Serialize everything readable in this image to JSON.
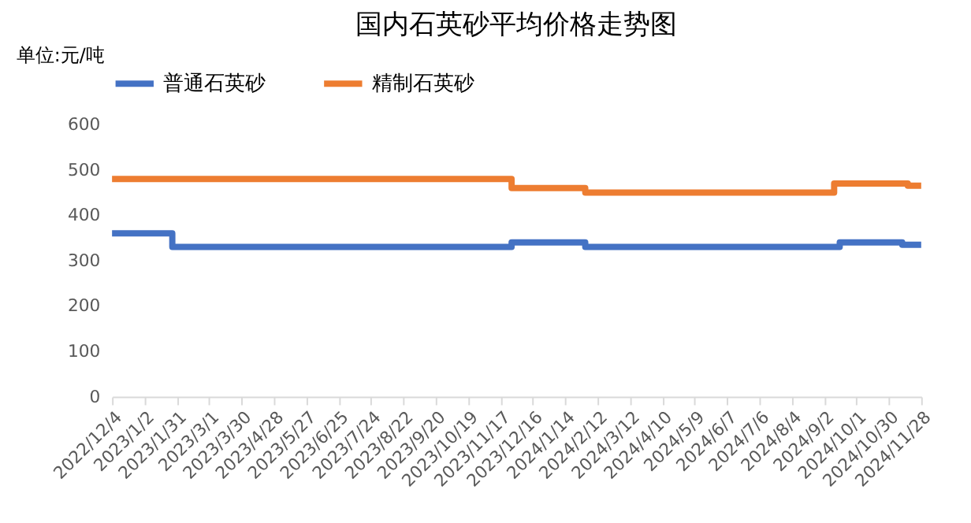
{
  "chart_data": {
    "type": "step",
    "title": "国内石英砂平均价格走势图",
    "ylabel": "单位:元/吨",
    "series": [
      {
        "name": "普通石英砂",
        "color": "#4472c4",
        "x": [
          "2022-12-04",
          "2023-01-27",
          "2023-11-27",
          "2024-02-01",
          "2024-09-16",
          "2024-11-11",
          "2024-11-28"
        ],
        "values": [
          360,
          330,
          340,
          330,
          340,
          335,
          335
        ]
      },
      {
        "name": "精制石英砂",
        "color": "#ed7d31",
        "x": [
          "2022-12-04",
          "2023-11-27",
          "2024-02-01",
          "2024-09-11",
          "2024-11-16",
          "2024-11-28"
        ],
        "values": [
          480,
          460,
          450,
          470,
          465,
          465
        ]
      }
    ],
    "xlim": [
      "2022-12-04",
      "2024-11-28"
    ],
    "xticks": [
      {
        "value": "2022-12-04",
        "label": "2022/12/4"
      },
      {
        "value": "2023-01-02",
        "label": "2023/1/2"
      },
      {
        "value": "2023-01-31",
        "label": "2023/1/31"
      },
      {
        "value": "2023-03-01",
        "label": "2023/3/1"
      },
      {
        "value": "2023-03-30",
        "label": "2023/3/30"
      },
      {
        "value": "2023-04-28",
        "label": "2023/4/28"
      },
      {
        "value": "2023-05-27",
        "label": "2023/5/27"
      },
      {
        "value": "2023-06-25",
        "label": "2023/6/25"
      },
      {
        "value": "2023-07-24",
        "label": "2023/7/24"
      },
      {
        "value": "2023-08-22",
        "label": "2023/8/22"
      },
      {
        "value": "2023-09-20",
        "label": "2023/9/20"
      },
      {
        "value": "2023-10-19",
        "label": "2023/10/19"
      },
      {
        "value": "2023-11-17",
        "label": "2023/11/17"
      },
      {
        "value": "2023-12-16",
        "label": "2023/12/16"
      },
      {
        "value": "2024-01-14",
        "label": "2024/1/14"
      },
      {
        "value": "2024-02-12",
        "label": "2024/2/12"
      },
      {
        "value": "2024-03-12",
        "label": "2024/3/12"
      },
      {
        "value": "2024-04-10",
        "label": "2024/4/10"
      },
      {
        "value": "2024-05-09",
        "label": "2024/5/9"
      },
      {
        "value": "2024-06-07",
        "label": "2024/6/7"
      },
      {
        "value": "2024-07-06",
        "label": "2024/7/6"
      },
      {
        "value": "2024-08-04",
        "label": "2024/8/4"
      },
      {
        "value": "2024-09-02",
        "label": "2024/9/2"
      },
      {
        "value": "2024-10-01",
        "label": "2024/10/1"
      },
      {
        "value": "2024-10-30",
        "label": "2024/10/30"
      },
      {
        "value": "2024-11-28",
        "label": "2024/11/28"
      }
    ],
    "ylim": [
      0,
      600
    ],
    "yticks": [
      0,
      100,
      200,
      300,
      400,
      500,
      600
    ],
    "grid": false,
    "legend": "top",
    "marker": "none",
    "line_style": "solid"
  }
}
